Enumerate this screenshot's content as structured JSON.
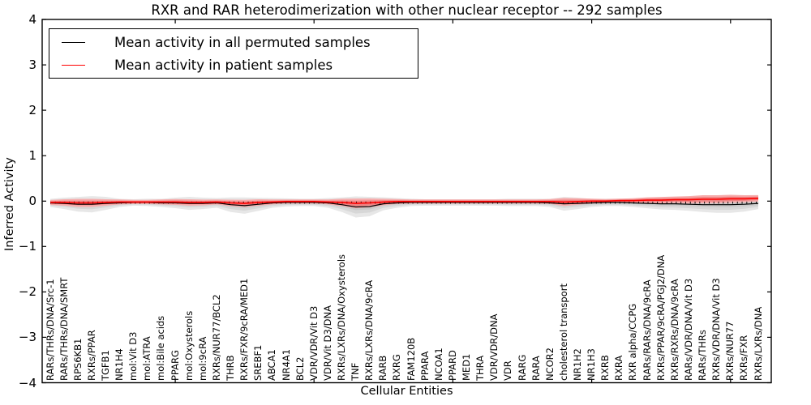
{
  "figure": {
    "title": "RXR and RAR heterodimerization with other nuclear receptor -- 292 samples",
    "xlabel": "Cellular Entities",
    "ylabel": "Inferred Activity",
    "y_ticks": [
      "4",
      "3",
      "2",
      "1",
      "0",
      "−1",
      "−2",
      "−3",
      "−4"
    ],
    "legend": [
      {
        "label": "Mean activity in all permuted samples",
        "color": "#000000"
      },
      {
        "label": "Mean activity in patient samples",
        "color": "#ff0000"
      }
    ],
    "colors": {
      "permuted_line": "#000000",
      "patient_line": "#ff0000",
      "permuted_band": "#d9d9d9",
      "patient_band": "#f08080",
      "axis": "#000000"
    }
  },
  "chart_data": {
    "type": "line",
    "title": "RXR and RAR heterodimerization with other nuclear receptor -- 292 samples",
    "xlabel": "Cellular Entities",
    "ylabel": "Inferred Activity",
    "ylim": [
      -4,
      4
    ],
    "grid": false,
    "legend_position": "upper left",
    "x_major_tick_every": 10,
    "categories": [
      "RARs/THRs/DNA/Src-1",
      "RARs/THRs/DNA/SMRT",
      "RPS6KB1",
      "RXRs/PPAR",
      "TGFB1",
      "NR1H4",
      "mol:Vit D3",
      "mol:ATRA",
      "mol:Bile acids",
      "PPARG",
      "mol:Oxysterols",
      "mol:9cRA",
      "RXRs/NUR77/BCL2",
      "THRB",
      "RXRs/FXR/9cRA/MED1",
      "SREBF1",
      "ABCA1",
      "NR4A1",
      "BCL2",
      "VDR/VDR/Vit D3",
      "VDR/Vit D3/DNA",
      "RXRs/LXRs/DNA/Oxysterols",
      "TNF",
      "RXRs/LXRs/DNA/9cRA",
      "RARB",
      "RXRG",
      "FAM120B",
      "PPARA",
      "NCOA1",
      "PPARD",
      "MED1",
      "THRA",
      "VDR/VDR/DNA",
      "VDR",
      "RARG",
      "RARA",
      "NCOR2",
      "cholesterol transport",
      "NR1H2",
      "NR1H3",
      "RXRB",
      "RXRA",
      "RXR alpha/CCPG",
      "RARs/RARs/DNA/9cRA",
      "RXRs/PPAR/9cRA/PGJ2/DNA",
      "RXRs/RXRs/DNA/9cRA",
      "RARs/VDR/DNA/Vit D3",
      "RARs/THRs",
      "RXRs/VDR/DNA/Vit D3",
      "RXRs/NUR77",
      "RXRs/FXR",
      "RXRs/LXRs/DNA"
    ],
    "series": [
      {
        "name": "Mean activity in all permuted samples",
        "style": "solid line",
        "color": "#000000",
        "values": [
          -0.04,
          -0.05,
          -0.07,
          -0.07,
          -0.05,
          -0.04,
          -0.03,
          -0.03,
          -0.04,
          -0.04,
          -0.05,
          -0.05,
          -0.04,
          -0.08,
          -0.1,
          -0.07,
          -0.04,
          -0.03,
          -0.03,
          -0.03,
          -0.04,
          -0.08,
          -0.13,
          -0.12,
          -0.06,
          -0.04,
          -0.03,
          -0.03,
          -0.03,
          -0.03,
          -0.03,
          -0.03,
          -0.03,
          -0.03,
          -0.03,
          -0.03,
          -0.04,
          -0.06,
          -0.05,
          -0.04,
          -0.03,
          -0.03,
          -0.04,
          -0.05,
          -0.06,
          -0.06,
          -0.07,
          -0.08,
          -0.08,
          -0.08,
          -0.07,
          -0.05
        ]
      },
      {
        "name": "Mean activity in patient samples",
        "style": "solid line",
        "color": "#ff0000",
        "values": [
          -0.03,
          -0.03,
          -0.04,
          -0.04,
          -0.03,
          -0.02,
          -0.02,
          -0.02,
          -0.02,
          -0.02,
          -0.03,
          -0.03,
          -0.02,
          -0.04,
          -0.05,
          -0.03,
          -0.02,
          -0.01,
          -0.01,
          -0.01,
          -0.02,
          -0.03,
          -0.05,
          -0.04,
          -0.02,
          -0.01,
          -0.01,
          -0.01,
          -0.01,
          -0.01,
          -0.01,
          -0.01,
          -0.01,
          -0.01,
          -0.01,
          -0.01,
          -0.01,
          -0.02,
          -0.01,
          0.0,
          0.0,
          0.01,
          0.01,
          0.02,
          0.02,
          0.03,
          0.03,
          0.04,
          0.04,
          0.05,
          0.05,
          0.06
        ]
      },
      {
        "name": "Permuted samples activity distribution (violin half-width)",
        "style": "band",
        "color": "#d9d9d9",
        "half_widths": [
          0.089,
          0.125,
          0.161,
          0.179,
          0.143,
          0.089,
          0.071,
          0.08,
          0.089,
          0.116,
          0.143,
          0.125,
          0.107,
          0.161,
          0.179,
          0.143,
          0.107,
          0.089,
          0.08,
          0.08,
          0.107,
          0.161,
          0.232,
          0.214,
          0.143,
          0.107,
          0.08,
          0.071,
          0.071,
          0.071,
          0.071,
          0.071,
          0.071,
          0.08,
          0.08,
          0.08,
          0.089,
          0.152,
          0.125,
          0.089,
          0.08,
          0.08,
          0.089,
          0.107,
          0.125,
          0.134,
          0.143,
          0.161,
          0.179,
          0.179,
          0.161,
          0.125
        ]
      },
      {
        "name": "Patient samples activity distribution (violin half-width)",
        "style": "band",
        "color": "#f08080",
        "half_widths": [
          0.054,
          0.071,
          0.089,
          0.089,
          0.071,
          0.054,
          0.045,
          0.045,
          0.054,
          0.063,
          0.071,
          0.063,
          0.054,
          0.071,
          0.08,
          0.071,
          0.054,
          0.045,
          0.045,
          0.045,
          0.054,
          0.08,
          0.107,
          0.098,
          0.071,
          0.054,
          0.045,
          0.045,
          0.045,
          0.045,
          0.045,
          0.045,
          0.045,
          0.045,
          0.045,
          0.045,
          0.054,
          0.089,
          0.071,
          0.054,
          0.045,
          0.045,
          0.054,
          0.063,
          0.071,
          0.071,
          0.08,
          0.089,
          0.089,
          0.089,
          0.08,
          0.071
        ]
      },
      {
        "name": "Zero reference (dotted)",
        "style": "dotted line",
        "color": "#000000",
        "value": -0.035
      }
    ]
  }
}
